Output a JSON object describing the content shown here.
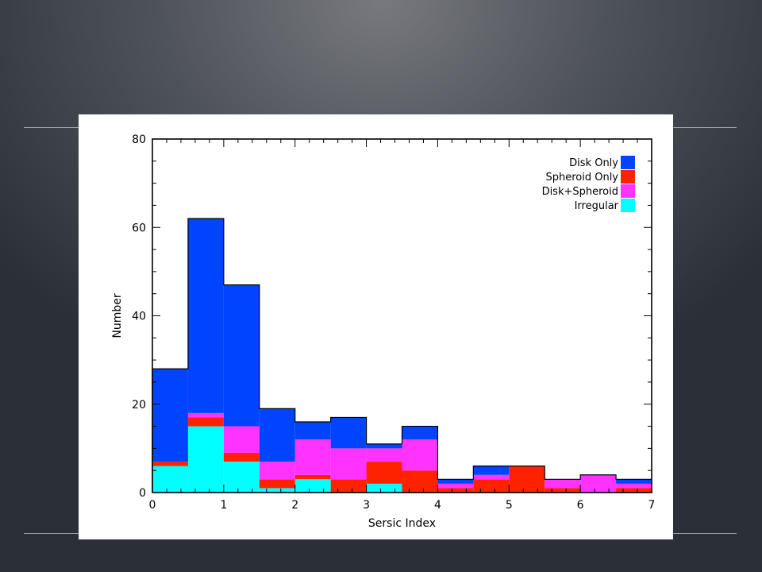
{
  "chart_data": {
    "type": "bar",
    "subtype": "stacked-step-histogram",
    "title": "",
    "xlabel": "Sersic Index",
    "ylabel": "Number",
    "xlim": [
      0,
      7
    ],
    "ylim": [
      0,
      80
    ],
    "x_ticks": [
      "0",
      "1",
      "2",
      "3",
      "4",
      "5",
      "6",
      "7"
    ],
    "y_ticks": [
      "0",
      "20",
      "40",
      "60",
      "80"
    ],
    "bin_width": 0.5,
    "bin_starts": [
      0,
      0.5,
      1,
      1.5,
      2,
      2.5,
      3,
      3.5,
      4,
      4.5,
      5,
      5.5,
      6,
      6.5
    ],
    "series": [
      {
        "name": "Irregular",
        "color": "#00ffff",
        "values": [
          6,
          15,
          7,
          1,
          3,
          0,
          2,
          0,
          0,
          0,
          0,
          0,
          0,
          0
        ]
      },
      {
        "name": "Spheroid Only",
        "color": "#ff2200",
        "values": [
          1,
          2,
          2,
          2,
          1,
          3,
          5,
          5,
          1,
          3,
          6,
          1,
          0,
          1
        ]
      },
      {
        "name": "Disk+Spheroid",
        "color": "#ff33ff",
        "values": [
          0,
          1,
          6,
          4,
          8,
          7,
          3,
          7,
          1,
          1,
          0,
          2,
          4,
          1
        ]
      },
      {
        "name": "Disk Only",
        "color": "#0044ff",
        "values": [
          21,
          44,
          32,
          12,
          4,
          7,
          1,
          3,
          1,
          2,
          0,
          0,
          0,
          1
        ]
      }
    ],
    "legend_order": [
      "Disk Only",
      "Spheroid Only",
      "Disk+Spheroid",
      "Irregular"
    ],
    "legend_position": "top-right",
    "grid": false
  }
}
